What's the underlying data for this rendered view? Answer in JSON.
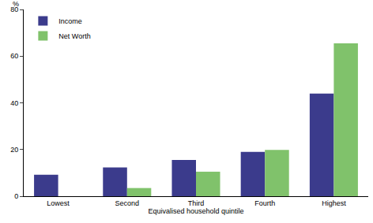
{
  "chart_data": {
    "type": "bar",
    "x_label": "Equivalised household quintile",
    "y_label": "%",
    "categories": [
      "Lowest",
      "Second",
      "Third",
      "Fourth",
      "Highest"
    ],
    "series": [
      {
        "name": "Income",
        "color": "#3b3b8c",
        "values": [
          9.2,
          12.3,
          15.5,
          19,
          44
        ]
      },
      {
        "name": "Net Worth",
        "color": "#80c26b",
        "values": [
          0,
          3.5,
          10.5,
          19.8,
          65.5
        ]
      }
    ],
    "ylim": [
      0,
      80
    ],
    "yticks": [
      0,
      20,
      40,
      60,
      80
    ],
    "grid": false,
    "legend": "top-left"
  }
}
